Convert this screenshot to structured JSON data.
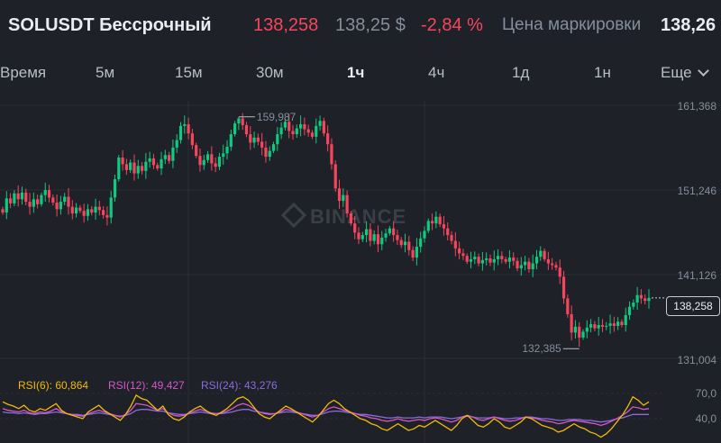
{
  "header": {
    "symbol": "SOLUSDT Бессрочный",
    "last_price": "138,258",
    "usd_price": "138,25 $",
    "change_pct": "-2,84 %",
    "mark_label": "Цена маркировки",
    "mark_value": "138,26"
  },
  "tabs": [
    {
      "label": "Время"
    },
    {
      "label": "5м"
    },
    {
      "label": "15м"
    },
    {
      "label": "30м"
    },
    {
      "label": "1ч",
      "active": true
    },
    {
      "label": "4ч"
    },
    {
      "label": "1д"
    },
    {
      "label": "1н"
    },
    {
      "label": "Еще"
    }
  ],
  "watermark": "BINANCE",
  "colors": {
    "up": "#0ecb81",
    "down": "#f6465d",
    "bg": "#1e2127",
    "rsi6": "#f0b90b",
    "rsi12": "#d558c8",
    "rsi24": "#8a6cdb"
  },
  "chart_data": {
    "type": "candlestick",
    "y_ticks": [
      "161,368",
      "151,246",
      "141,126",
      "131,004"
    ],
    "ylim": [
      131.004,
      161.368
    ],
    "high_marker": "159,987",
    "low_marker": "132,385",
    "current_price_label": "138,258",
    "closes": [
      148.5,
      150.2,
      149.6,
      150.8,
      150.1,
      150.9,
      149.8,
      149.2,
      150.1,
      149.5,
      150.6,
      151.2,
      150.3,
      149.7,
      148.9,
      149.8,
      150.4,
      149.2,
      148.4,
      149.1,
      148.7,
      148.1,
      148.9,
      148.5,
      149.2,
      148.8,
      148.2,
      147.9,
      150.3,
      152.5,
      155.1,
      154.3,
      153.6,
      154.5,
      153.2,
      154.1,
      153.5,
      154.6,
      155.0,
      154.2,
      153.8,
      154.9,
      155.4,
      154.7,
      156.3,
      157.2,
      158.9,
      159.1,
      158.0,
      156.6,
      155.3,
      154.2,
      154.8,
      155.5,
      154.4,
      154.0,
      155.2,
      155.6,
      156.4,
      157.9,
      159.2,
      159.8,
      159.0,
      157.9,
      156.9,
      157.5,
      157.0,
      156.3,
      155.2,
      155.9,
      156.7,
      157.9,
      158.7,
      159.4,
      158.3,
      157.9,
      158.6,
      159.1,
      158.5,
      158.1,
      157.6,
      158.9,
      159.5,
      158.0,
      156.7,
      154.3,
      151.4,
      149.9,
      150.6,
      148.4,
      147.2,
      146.1,
      145.3,
      145.8,
      146.5,
      145.1,
      145.9,
      144.7,
      145.5,
      146.0,
      146.6,
      145.8,
      145.2,
      144.6,
      145.0,
      144.0,
      143.1,
      144.4,
      145.4,
      146.3,
      147.5,
      147.2,
      148.0,
      147.1,
      146.6,
      145.8,
      145.1,
      144.2,
      143.6,
      143.3,
      142.6,
      142.9,
      143.2,
      142.4,
      142.8,
      143.0,
      142.5,
      142.9,
      143.3,
      142.9,
      142.6,
      143.1,
      142.7,
      141.8,
      142.2,
      142.6,
      141.7,
      142.4,
      143.2,
      143.9,
      142.9,
      142.4,
      142.2,
      141.9,
      140.8,
      138.2,
      136.3,
      134.1,
      134.8,
      133.5,
      134.2,
      134.7,
      135.1,
      134.6,
      135.0,
      134.8,
      134.9,
      135.2,
      134.9,
      135.4,
      135.0,
      136.2,
      137.2,
      137.7,
      138.6,
      138.2,
      137.9,
      138.258
    ],
    "rsi": {
      "legend": [
        {
          "label": "RSI(6): 60,864",
          "series": "rsi6"
        },
        {
          "label": "RSI(12): 49,427",
          "series": "rsi12"
        },
        {
          "label": "RSI(24): 43,276",
          "series": "rsi24"
        }
      ],
      "y_ticks": [
        "70,0",
        "40,0"
      ],
      "rsi6": [
        60,
        57,
        55,
        52,
        56,
        50,
        48,
        52,
        50,
        54,
        58,
        50,
        46,
        44,
        42,
        40,
        48,
        52,
        56,
        50,
        46,
        42,
        38,
        45,
        55,
        68,
        64,
        62,
        56,
        50,
        55,
        45,
        40,
        38,
        42,
        48,
        52,
        55,
        50,
        46,
        44,
        48,
        52,
        58,
        64,
        66,
        62,
        54,
        46,
        42,
        40,
        45,
        50,
        55,
        52,
        48,
        44,
        40,
        36,
        42,
        50,
        58,
        62,
        58,
        52,
        48,
        44,
        40,
        38,
        34,
        32,
        28,
        26,
        30,
        34,
        30,
        26,
        28,
        32,
        30,
        34,
        38,
        34,
        30,
        26,
        32,
        40,
        44,
        38,
        32,
        30,
        34,
        40,
        36,
        30,
        28,
        32,
        36,
        42,
        40,
        36,
        32,
        30,
        28,
        24,
        26,
        30,
        34,
        30,
        28,
        24,
        22,
        18,
        22,
        28,
        36,
        44,
        54,
        66,
        62,
        56,
        60
      ],
      "rsi12": [
        52,
        50,
        49,
        48,
        50,
        47,
        46,
        48,
        47,
        49,
        52,
        48,
        46,
        45,
        44,
        43,
        46,
        48,
        50,
        48,
        46,
        44,
        42,
        45,
        50,
        58,
        57,
        56,
        53,
        50,
        52,
        47,
        44,
        43,
        44,
        47,
        49,
        51,
        49,
        47,
        46,
        47,
        49,
        52,
        56,
        58,
        56,
        52,
        48,
        46,
        45,
        46,
        48,
        51,
        50,
        48,
        46,
        44,
        42,
        44,
        48,
        52,
        54,
        52,
        50,
        48,
        46,
        44,
        43,
        41,
        40,
        38,
        37,
        38,
        40,
        38,
        37,
        38,
        39,
        38,
        40,
        41,
        40,
        38,
        36,
        38,
        42,
        44,
        42,
        39,
        38,
        40,
        42,
        40,
        38,
        37,
        38,
        40,
        42,
        41,
        40,
        38,
        37,
        36,
        34,
        35,
        37,
        38,
        37,
        36,
        35,
        34,
        32,
        34,
        37,
        40,
        44,
        48,
        54,
        53,
        51,
        52
      ],
      "rsi24": [
        48,
        47,
        47,
        46,
        47,
        46,
        45,
        46,
        46,
        47,
        48,
        47,
        46,
        45,
        45,
        44,
        45,
        46,
        47,
        46,
        45,
        44,
        43,
        44,
        46,
        50,
        51,
        51,
        50,
        49,
        49,
        47,
        46,
        45,
        45,
        46,
        47,
        48,
        47,
        46,
        46,
        46,
        47,
        48,
        50,
        51,
        51,
        49,
        48,
        47,
        46,
        46,
        47,
        48,
        48,
        47,
        46,
        45,
        44,
        44,
        46,
        48,
        49,
        49,
        48,
        47,
        46,
        45,
        45,
        44,
        43,
        42,
        41,
        41,
        42,
        41,
        41,
        41,
        42,
        41,
        42,
        42,
        42,
        41,
        40,
        41,
        42,
        43,
        42,
        41,
        41,
        41,
        42,
        41,
        40,
        40,
        41,
        41,
        42,
        42,
        41,
        40,
        40,
        39,
        38,
        38,
        39,
        39,
        39,
        38,
        38,
        37,
        36,
        37,
        38,
        40,
        41,
        43,
        45,
        45,
        45,
        45
      ]
    }
  }
}
